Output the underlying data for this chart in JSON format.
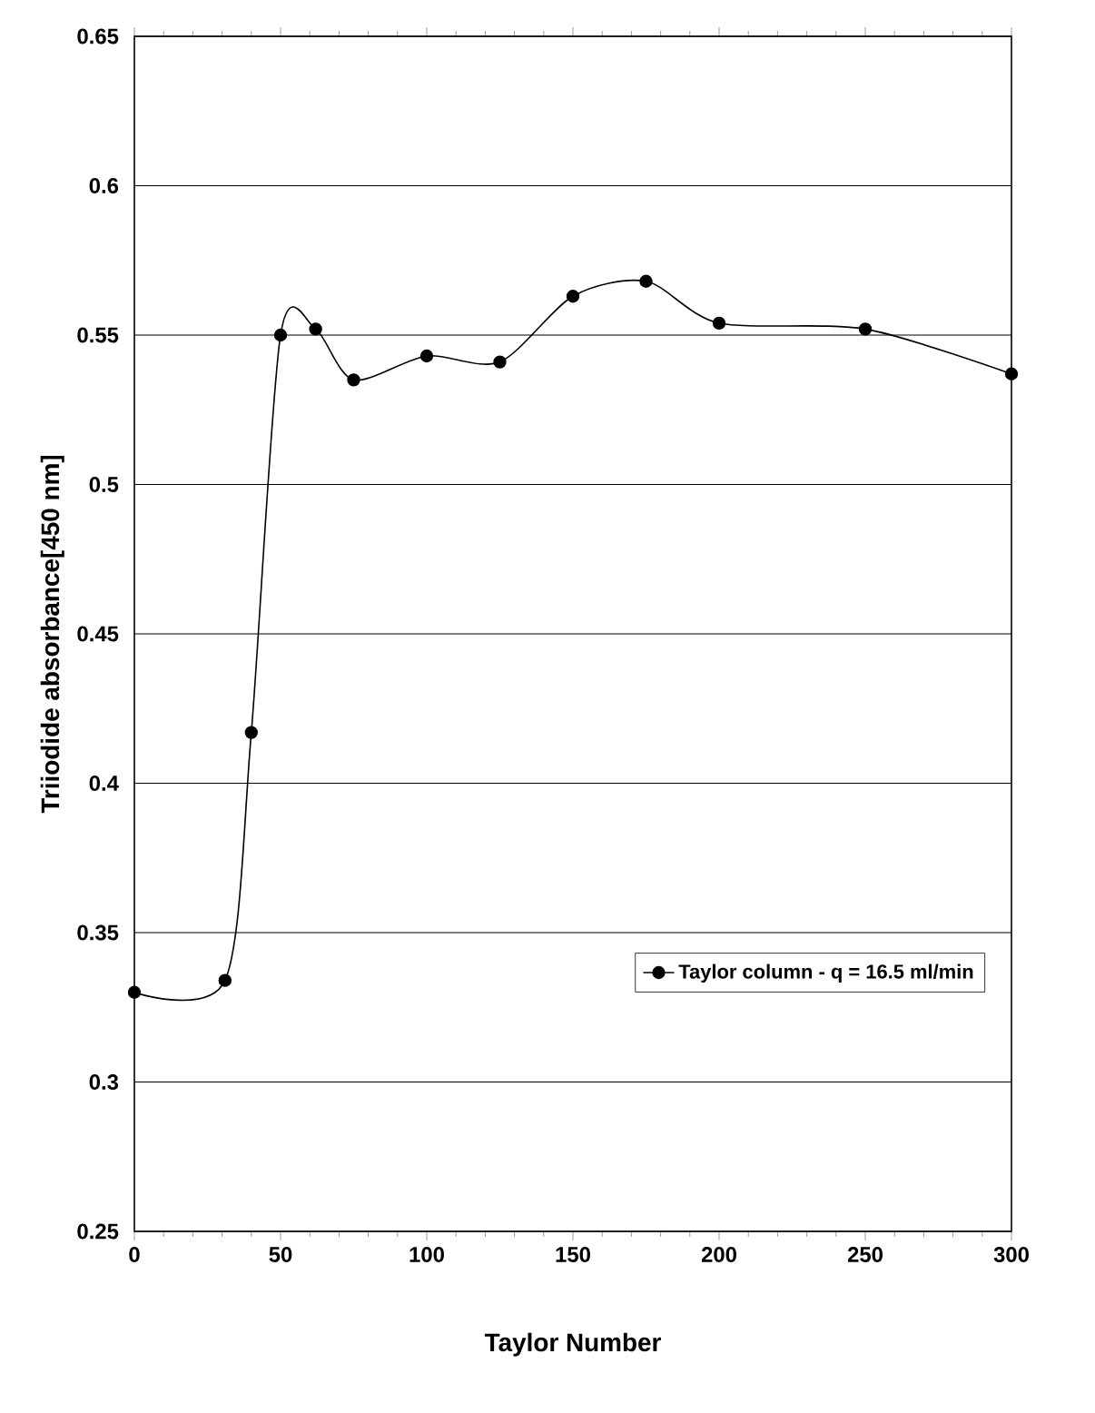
{
  "chart_data": {
    "type": "line",
    "xlabel": "Taylor Number",
    "ylabel": "Triiodide absorbance[450 nm]",
    "series": [
      {
        "name": "Taylor column - q = 16.5 ml/min",
        "color": "#000000",
        "x": [
          0,
          31,
          40,
          50,
          62,
          75,
          100,
          125,
          150,
          175,
          200,
          250,
          300
        ],
        "values": [
          0.33,
          0.334,
          0.417,
          0.55,
          0.552,
          0.535,
          0.543,
          0.541,
          0.563,
          0.568,
          0.554,
          0.552,
          0.537
        ]
      }
    ],
    "xlim": [
      0,
      300
    ],
    "ylim": [
      0.25,
      0.65
    ],
    "xticks": [
      0,
      50,
      100,
      150,
      200,
      250,
      300
    ],
    "yticks": [
      0.25,
      0.3,
      0.35,
      0.4,
      0.45,
      0.5,
      0.55,
      0.6,
      0.65
    ],
    "grid": "y",
    "legend": "bottom right",
    "marker": "circle",
    "line_style": "solid"
  }
}
